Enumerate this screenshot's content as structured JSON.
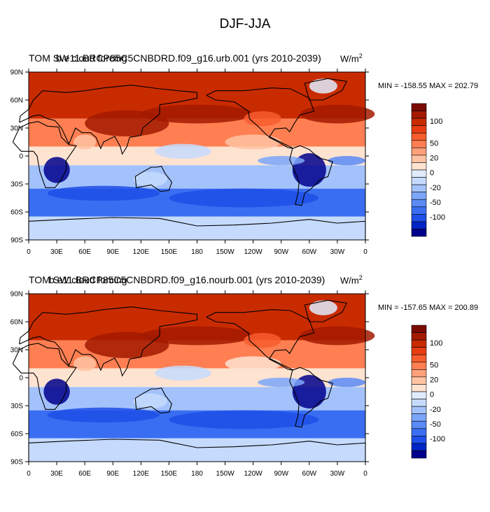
{
  "figure_title": "DJF-JJA",
  "colorbar_levels": [
    -120,
    -100,
    -80,
    -60,
    -50,
    -40,
    -30,
    -20,
    -10,
    0,
    10,
    20,
    30,
    40,
    50,
    60,
    80,
    100,
    120
  ],
  "colorbar_tick_labels": [
    "100",
    "50",
    "20",
    "0",
    "-20",
    "-50",
    "-100"
  ],
  "colors": [
    "#00008c",
    "#0025c4",
    "#1f4fe8",
    "#3a6ef2",
    "#5a8bf7",
    "#7ba6fa",
    "#a3c2fc",
    "#c6dafd",
    "#e0ecfe",
    "#ffe3d1",
    "#ffc3a3",
    "#ffa07a",
    "#ff7f52",
    "#f85d2e",
    "#e63e12",
    "#c92b00",
    "#a31a00",
    "#7a0a00"
  ],
  "lat_labels": [
    "90N",
    "60N",
    "30N",
    "0",
    "30S",
    "60S",
    "90S"
  ],
  "lon_labels": [
    "0",
    "30E",
    "60E",
    "90E",
    "120E",
    "150E",
    "180",
    "150W",
    "120W",
    "90W",
    "60W",
    "30W",
    "0"
  ],
  "panels": [
    {
      "title_overlap_a": "TOM SW cloud forcing",
      "title_overlap_b": "b.e11.BRCP85C5CNBDRD.f09_g16.urb.001 (yrs 2010-2039)",
      "units": "W/m",
      "units_sup": "2",
      "minmax": "MIN = -158.55   MAX = 202.79"
    },
    {
      "title_overlap_a": "TOM SW cloud forcing",
      "title_overlap_b": "b.e11.BRCP85C5CNBDRD.f09_g16.nourb.001 (yrs 2010-2039)",
      "units": "W/m",
      "units_sup": "2",
      "minmax": "MIN = -157.65   MAX = 200.89"
    }
  ],
  "chart_data": {
    "type": "heatmap",
    "description_of_axes": "lon 0..360, lat -90..90",
    "xlim": [
      0,
      360
    ],
    "ylim": [
      -90,
      90
    ],
    "zonal_bands": [
      {
        "lat_from": 90,
        "lat_to": 60,
        "value": 60
      },
      {
        "lat_from": 60,
        "lat_to": 40,
        "value": 75
      },
      {
        "lat_from": 40,
        "lat_to": 10,
        "value": 35
      },
      {
        "lat_from": 10,
        "lat_to": -10,
        "value": 5
      },
      {
        "lat_from": -10,
        "lat_to": -35,
        "value": -30
      },
      {
        "lat_from": -35,
        "lat_to": -65,
        "value": -55
      },
      {
        "lat_from": -65,
        "lat_to": -90,
        "value": -15
      }
    ]
  }
}
